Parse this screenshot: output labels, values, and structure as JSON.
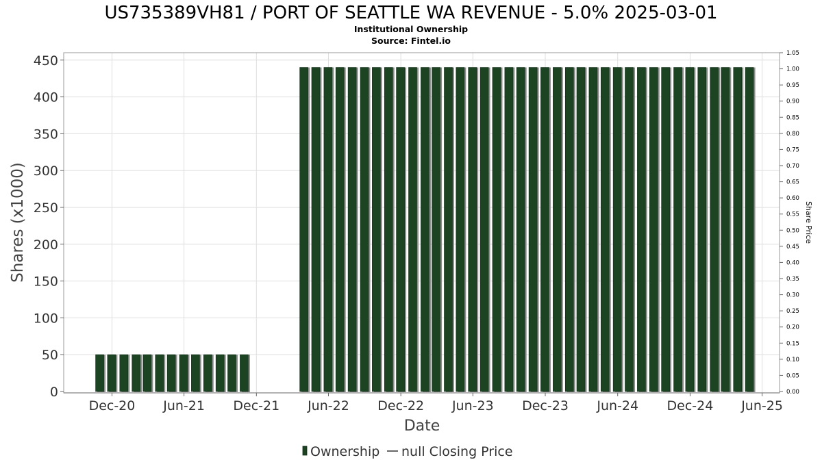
{
  "chart_data": {
    "type": "bar",
    "title": "US735389VH81 / PORT OF SEATTLE WA REVENUE - 5.0% 2025-03-01",
    "subtitle_1": "Institutional Ownership",
    "subtitle_2": "Source: Fintel.io",
    "xlabel": "Date",
    "ylabel": "Shares (x1000)",
    "y2label": "Share Price",
    "ylim": [
      0,
      460
    ],
    "y2lim": [
      0,
      1.05
    ],
    "yticks": [
      0,
      50,
      100,
      150,
      200,
      250,
      300,
      350,
      400,
      450
    ],
    "y2ticks": [
      "0.00",
      "0.05",
      "0.10",
      "0.15",
      "0.20",
      "0.25",
      "0.30",
      "0.35",
      "0.40",
      "0.45",
      "0.50",
      "0.55",
      "0.60",
      "0.65",
      "0.70",
      "0.75",
      "0.80",
      "0.85",
      "0.90",
      "0.95",
      "1.00",
      "1.05"
    ],
    "xticks": [
      "Dec-20",
      "Jun-21",
      "Dec-21",
      "Jun-22",
      "Dec-22",
      "Jun-23",
      "Dec-23",
      "Jun-24",
      "Dec-24",
      "Jun-25"
    ],
    "x_range": [
      "2020-08-01",
      "2025-07-15"
    ],
    "bar_color": "#1c4423",
    "grid": true,
    "series": [
      {
        "name": "Ownership",
        "dates": [
          "2020-10-31",
          "2020-11-30",
          "2020-12-31",
          "2021-01-31",
          "2021-02-28",
          "2021-03-31",
          "2021-04-30",
          "2021-05-31",
          "2021-06-30",
          "2021-07-31",
          "2021-08-31",
          "2021-09-30",
          "2021-10-31",
          "2022-03-31",
          "2022-04-30",
          "2022-05-31",
          "2022-06-30",
          "2022-07-31",
          "2022-08-31",
          "2022-09-30",
          "2022-10-31",
          "2022-11-30",
          "2022-12-31",
          "2023-01-31",
          "2023-02-28",
          "2023-03-31",
          "2023-04-30",
          "2023-05-31",
          "2023-06-30",
          "2023-07-31",
          "2023-08-31",
          "2023-09-30",
          "2023-10-31",
          "2023-11-30",
          "2023-12-31",
          "2024-01-31",
          "2024-02-29",
          "2024-03-31",
          "2024-04-30",
          "2024-05-31",
          "2024-06-30",
          "2024-07-31",
          "2024-08-31",
          "2024-09-30",
          "2024-10-31",
          "2024-11-30",
          "2024-12-31",
          "2025-01-31",
          "2025-02-28",
          "2025-03-31",
          "2025-04-30"
        ],
        "values": [
          50,
          50,
          50,
          50,
          50,
          50,
          50,
          50,
          50,
          50,
          50,
          50,
          50,
          440,
          440,
          440,
          440,
          440,
          440,
          440,
          440,
          440,
          440,
          440,
          440,
          440,
          440,
          440,
          440,
          440,
          440,
          440,
          440,
          440,
          440,
          440,
          440,
          440,
          440,
          440,
          440,
          440,
          440,
          440,
          440,
          440,
          440,
          440,
          440,
          440,
          440
        ]
      }
    ],
    "legend": [
      {
        "label": "Ownership",
        "symbol": "bar"
      },
      {
        "label": "null Closing Price",
        "symbol": "line"
      }
    ],
    "legend_position": "bottom"
  }
}
